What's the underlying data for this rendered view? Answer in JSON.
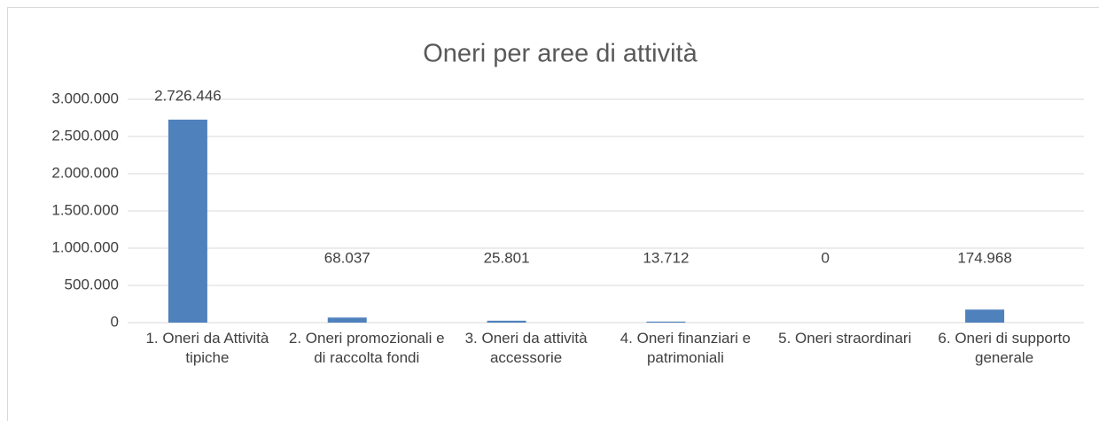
{
  "chart_data": {
    "type": "bar",
    "title": "Oneri per aree di attività",
    "categories": [
      "1. Oneri da Attività tipiche",
      "2. Oneri promozionali e di raccolta fondi",
      "3. Oneri da attività accessorie",
      "4. Oneri finanziari e patrimoniali",
      "5. Oneri straordinari",
      "6. Oneri di supporto generale"
    ],
    "values": [
      2726446,
      68037,
      25801,
      13712,
      0,
      174968
    ],
    "value_labels": [
      "2.726.446",
      "68.037",
      "25.801",
      "13.712",
      "0",
      "174.968"
    ],
    "color": "#4f81bd",
    "ylim": [
      0,
      3000000
    ],
    "yticks": [
      0,
      {
        "value": 500000,
        "label": "500.000"
      },
      {
        "value": 1000000,
        "label": "1.000.000"
      },
      {
        "value": 1500000,
        "label": "1.500.000"
      },
      {
        "value": 2000000,
        "label": "2.000.000"
      },
      {
        "value": 2500000,
        "label": "2.500.000"
      },
      {
        "value": 3000000,
        "label": "3.000.000"
      }
    ],
    "grid": true
  }
}
